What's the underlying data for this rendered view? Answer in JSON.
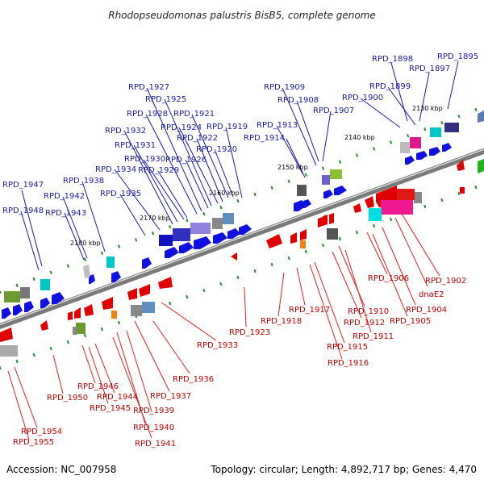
{
  "title": "Rhodopseudomonas palustris BisB5, complete genome",
  "footer": {
    "accession": "Accession: NC_007958",
    "summary": "Topology: circular; Length: 4,892,717 bp; Genes: 4,470"
  },
  "colors": {
    "upper_labels": "#1a1aa8",
    "lower_labels": "#c00000",
    "backbone": "#8a8a8a"
  },
  "scale_ticks": [
    "2130 kbp",
    "2140 kbp",
    "2150 kbp",
    "2160 kbp",
    "2170 kbp",
    "2180 kbp"
  ],
  "upper_labels": [
    "RPD_1895",
    "RPD_1897",
    "RPD_1898",
    "RPD_1899",
    "RPD_1900",
    "RPD_1907",
    "RPD_1908",
    "RPD_1909",
    "RPD_1913",
    "RPD_1914",
    "RPD_1919",
    "RPD_1920",
    "RPD_1921",
    "RPD_1922",
    "RPD_1924",
    "RPD_1925",
    "RPD_1926",
    "RPD_1927",
    "RPD_1928",
    "RPD_1929",
    "RPD_1930",
    "RPD_1931",
    "RPD_1932",
    "RPD_1934",
    "RPD_1935",
    "RPD_1938",
    "RPD_1942",
    "RPD_1943",
    "RPD_1947",
    "RPD_1948"
  ],
  "lower_labels": [
    "RPD_1902",
    "dnaE2",
    "RPD_1904",
    "RPD_1905",
    "RPD_1906",
    "RPD_1910",
    "RPD_1911",
    "RPD_1912",
    "RPD_1915",
    "RPD_1916",
    "RPD_1917",
    "RPD_1918",
    "RPD_1923",
    "RPD_1933",
    "RPD_1936",
    "RPD_1937",
    "RPD_1939",
    "RPD_1940",
    "RPD_1941",
    "RPD_1944",
    "RPD_1945",
    "RPD_1946",
    "RPD_1950",
    "RPD_1954",
    "RPD_1955"
  ]
}
